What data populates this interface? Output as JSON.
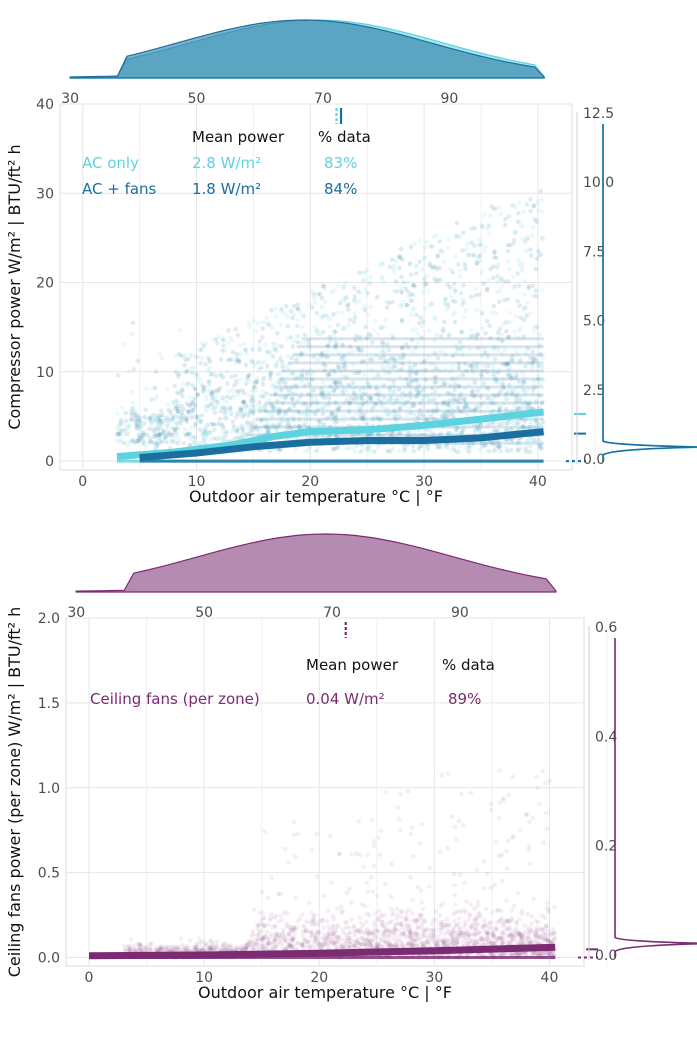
{
  "chart_data": [
    {
      "type": "scatter",
      "xlabel": "Outdoor air temperature °C | °F",
      "ylabel": "Compressor power W/m² | BTU/ft² h",
      "xlim": [
        -2,
        43
      ],
      "ylim": [
        -1,
        40
      ],
      "x_ticks": [
        "0",
        "10",
        "20",
        "30",
        "40"
      ],
      "y_ticks": [
        "0",
        "10",
        "20",
        "30",
        "40"
      ],
      "x2_ticks": [
        "30",
        "50",
        "70",
        "90"
      ],
      "y2_ticks": [
        "0.0",
        "2.5",
        "5.0",
        "7.5",
        "10.0",
        "12.5"
      ],
      "grid": true,
      "table_header": {
        "metric": "Mean power",
        "share": "% data"
      },
      "series": [
        {
          "name": "AC only",
          "mean_power": "2.8 W/m²",
          "share": "83%",
          "color": "#5ed3e0",
          "trend": [
            [
              3,
              0.5
            ],
            [
              8,
              1.0
            ],
            [
              13,
              1.8
            ],
            [
              17,
              2.8
            ],
            [
              20,
              3.3
            ],
            [
              25,
              3.5
            ],
            [
              30,
              4.0
            ],
            [
              35,
              4.7
            ],
            [
              40.5,
              5.5
            ]
          ]
        },
        {
          "name": "AC + fans",
          "mean_power": "1.8 W/m²",
          "share": "84%",
          "color": "#1b6f9e",
          "trend": [
            [
              5,
              0.4
            ],
            [
              10,
              0.9
            ],
            [
              15,
              1.6
            ],
            [
              20,
              2.1
            ],
            [
              25,
              2.3
            ],
            [
              30,
              2.3
            ],
            [
              35,
              2.6
            ],
            [
              40.5,
              3.3
            ]
          ]
        }
      ]
    },
    {
      "type": "scatter",
      "xlabel": "Outdoor air temperature °C | °F",
      "ylabel": "Ceiling fans power (per zone) W/m² | BTU/ft² h",
      "xlim": [
        -2,
        43
      ],
      "ylim": [
        -0.05,
        2.0
      ],
      "x_ticks": [
        "0",
        "10",
        "20",
        "30",
        "40"
      ],
      "y_ticks": [
        "0.0",
        "0.5",
        "1.0",
        "1.5",
        "2.0"
      ],
      "x2_ticks": [
        "30",
        "50",
        "70",
        "90"
      ],
      "y2_ticks": [
        "0.0",
        "0.2",
        "0.4",
        "0.6"
      ],
      "grid": true,
      "table_header": {
        "metric": "Mean power",
        "share": "% data"
      },
      "series": [
        {
          "name": "Ceiling fans (per zone)",
          "mean_power": "0.04 W/m²",
          "share": "89%",
          "color": "#7a2b72",
          "trend": [
            [
              0,
              0.01
            ],
            [
              10,
              0.015
            ],
            [
              20,
              0.025
            ],
            [
              30,
              0.04
            ],
            [
              40.5,
              0.06
            ]
          ]
        }
      ]
    }
  ]
}
